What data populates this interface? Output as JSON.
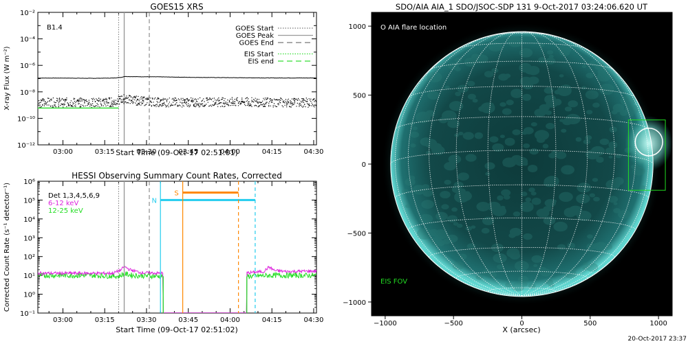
{
  "chart_data": [
    {
      "type": "line",
      "title": "GOES15 XRS",
      "ylabel": "X-ray Flux (W m⁻²)",
      "xlabel": "Start Time (09-Oct-17 02:51:01)",
      "yscale": "log",
      "ylim": [
        1e-12,
        0.01
      ],
      "xlim": [
        "02:51",
        "04:31"
      ],
      "x_ticks": [
        "03:00",
        "03:15",
        "03:30",
        "03:45",
        "04:00",
        "04:15",
        "04:30"
      ],
      "y_ticks": [
        "10⁻¹²",
        "10⁻¹⁰",
        "10⁻⁸",
        "10⁻⁶",
        "10⁻⁴",
        "10⁻²"
      ],
      "annotation": "B1.4",
      "legend_position": "top-right",
      "legend": [
        {
          "label": "GOES Start",
          "style": "dotted",
          "color": "#777777"
        },
        {
          "label": "GOES Peak",
          "style": "solid",
          "color": "#999999"
        },
        {
          "label": "GOES End",
          "style": "dashed",
          "color": "#777777"
        },
        {
          "label": "EIS Start",
          "style": "dotted",
          "color": "#33dd33"
        },
        {
          "label": "EIS end",
          "style": "dashed",
          "color": "#33dd33"
        }
      ],
      "vlines": {
        "goes_start": "03:20",
        "goes_peak": "03:22",
        "goes_end": "03:31"
      },
      "series": [
        {
          "x": [
            "02:51",
            "03:00",
            "03:10",
            "03:18",
            "03:21",
            "03:22",
            "03:26",
            "03:35",
            "03:45",
            "04:00",
            "04:15",
            "04:31"
          ],
          "values": [
            1.1e-07,
            1.1e-07,
            1.05e-07,
            1.1e-07,
            1.25e-07,
            1.45e-07,
            1.4e-07,
            1.35e-07,
            1.25e-07,
            1.18e-07,
            1.12e-07,
            1.12e-07
          ],
          "color": "#000000",
          "style": "solid"
        },
        {
          "x": [
            "02:51",
            "03:00",
            "03:10",
            "03:18",
            "03:21",
            "03:22",
            "03:26",
            "03:35",
            "03:45",
            "04:00",
            "04:15",
            "04:31"
          ],
          "values": [
            1.5e-09,
            1.6e-09,
            1.5e-09,
            1.7e-09,
            2.5e-09,
            3e-09,
            2.2e-09,
            1.6e-09,
            1.6e-09,
            1.7e-09,
            1.6e-09,
            1.5e-09
          ],
          "color": "#000000",
          "style": "noisy"
        }
      ],
      "hlines": [
        {
          "value": 6e-10,
          "from": "02:51",
          "to": "03:20",
          "color": "#33dd33"
        }
      ]
    },
    {
      "type": "line",
      "title": "HESSI Observing Summary Count Rates, Corrected",
      "ylabel": "Corrected Count Rate (s⁻¹ detector⁻¹)",
      "xlabel": "Start Time (09-Oct-17 02:51:02)",
      "yscale": "log",
      "ylim": [
        0.1,
        1000000.0
      ],
      "xlim": [
        "02:51",
        "04:31"
      ],
      "x_ticks": [
        "03:00",
        "03:15",
        "03:30",
        "03:45",
        "04:00",
        "04:15",
        "04:30"
      ],
      "y_ticks": [
        "10⁻¹",
        "10⁰",
        "10¹",
        "10²",
        "10³",
        "10⁴",
        "10⁵",
        "10⁶"
      ],
      "legend": [
        {
          "label": "Det 1,3,4,5,6,9",
          "color": "#000000"
        },
        {
          "label": "6-12 keV",
          "color": "#dd22dd"
        },
        {
          "label": "12-25 keV",
          "color": "#22dd22"
        }
      ],
      "intervals": [
        {
          "label": "N",
          "start": "03:35",
          "end": "04:09",
          "value": 100000.0,
          "color": "#22ccee"
        },
        {
          "label": "S",
          "start": "03:43",
          "end": "04:03",
          "value": 250000.0,
          "color": "#ff8800"
        }
      ],
      "vlines": {
        "goes_start": "03:20",
        "goes_peak": "03:22",
        "goes_end": "03:31"
      },
      "series": [
        {
          "name": "6-12 keV",
          "color": "#dd22dd",
          "x": [
            "02:51",
            "03:10",
            "03:18",
            "03:21",
            "03:22",
            "03:24",
            "03:28",
            "03:35",
            "04:07",
            "04:12",
            "04:14",
            "04:16",
            "04:20",
            "04:31"
          ],
          "values": [
            13,
            13,
            13,
            20,
            30,
            20,
            14,
            13,
            14,
            16,
            28,
            18,
            16,
            17
          ]
        },
        {
          "name": "12-25 keV",
          "color": "#22dd22",
          "x": [
            "02:51",
            "03:10",
            "03:20",
            "03:22",
            "03:25",
            "03:35",
            "04:07",
            "04:15",
            "04:31"
          ],
          "values": [
            10,
            10,
            9,
            12,
            10,
            9,
            9,
            10,
            10
          ]
        }
      ],
      "data_gap": {
        "from": "03:36",
        "to": "04:06",
        "value": 0.1
      }
    },
    {
      "type": "heatmap",
      "title": "SDO/AIA AIA_1 SDO/JSOC-SDP 131  9-Oct-2017 03:24:06.620 UT",
      "xlabel": "X (arcsec)",
      "xlim": [
        -1100,
        1100
      ],
      "ylim": [
        -1100,
        1100
      ],
      "x_ticks": [
        -1000,
        -500,
        0,
        500,
        1000
      ],
      "y_ticks": [
        -1000,
        -500,
        0,
        500,
        1000
      ],
      "annotations": [
        {
          "text": "O AIA flare location",
          "color": "#ffffff"
        },
        {
          "text": "EIS FOV",
          "color": "#22dd22"
        }
      ],
      "flare_circle": {
        "x": 930,
        "y": 160,
        "r": 100
      },
      "eis_fov": {
        "x1": 780,
        "x2": 1050,
        "y1": -190,
        "y2": 320
      },
      "footer": "20-Oct-2017 23:37"
    }
  ]
}
